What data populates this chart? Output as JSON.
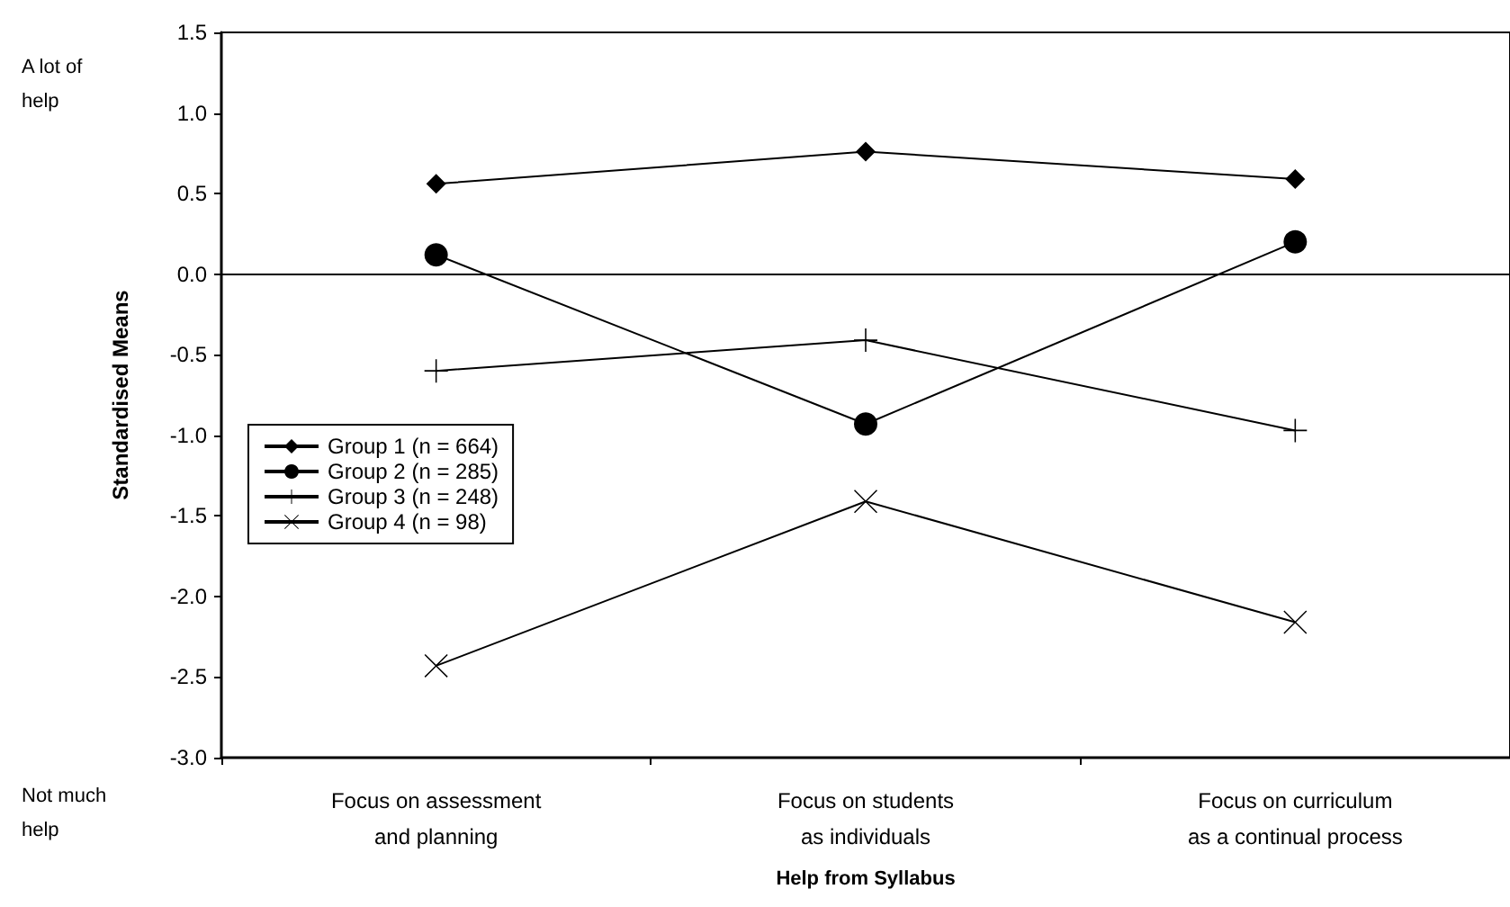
{
  "chart_data": {
    "type": "line",
    "xlabel": "Help from Syllabus",
    "ylabel": "Standardised Means",
    "categories": [
      "Focus on assessment\nand planning",
      "Focus on students\nas individuals",
      "Focus on curriculum\nas a continual process"
    ],
    "series": [
      {
        "name": "Group 1 (n = 664)",
        "color": "#000000",
        "marker": "diamond",
        "values": [
          0.56,
          0.76,
          0.59
        ]
      },
      {
        "name": "Group 2 (n = 285)",
        "color": "#000000",
        "marker": "circle",
        "values": [
          0.12,
          -0.93,
          0.2
        ]
      },
      {
        "name": "Group 3 (n = 248)",
        "color": "#000000",
        "marker": "plus",
        "values": [
          -0.6,
          -0.41,
          -0.97
        ]
      },
      {
        "name": "Group 4 (n = 98)",
        "color": "#000000",
        "marker": "cross",
        "values": [
          -2.43,
          -1.41,
          -2.16
        ]
      }
    ],
    "ylim": [
      -3.0,
      1.5
    ],
    "yticks": [
      {
        "value": -3.0,
        "label": "-3.0"
      },
      {
        "value": -2.5,
        "label": "-2.5"
      },
      {
        "value": -2.0,
        "label": "-2.0"
      },
      {
        "value": -1.5,
        "label": "-1.5"
      },
      {
        "value": -1.0,
        "label": "-1.0"
      },
      {
        "value": -0.5,
        "label": "-0.5"
      },
      {
        "value": 0,
        "label": "0.0"
      },
      {
        "value": 0.5,
        "label": "0.5"
      },
      {
        "value": 1.0,
        "label": "1.0"
      },
      {
        "value": 1.5,
        "label": "1.5"
      }
    ],
    "ref_lines": [
      {
        "axis": "y",
        "value": 0,
        "color": "#000000"
      }
    ],
    "annotations": [
      "A lot of\nhelp",
      "Not much\nhelp"
    ],
    "legend": "left",
    "grid": false,
    "line_style": "solid"
  }
}
